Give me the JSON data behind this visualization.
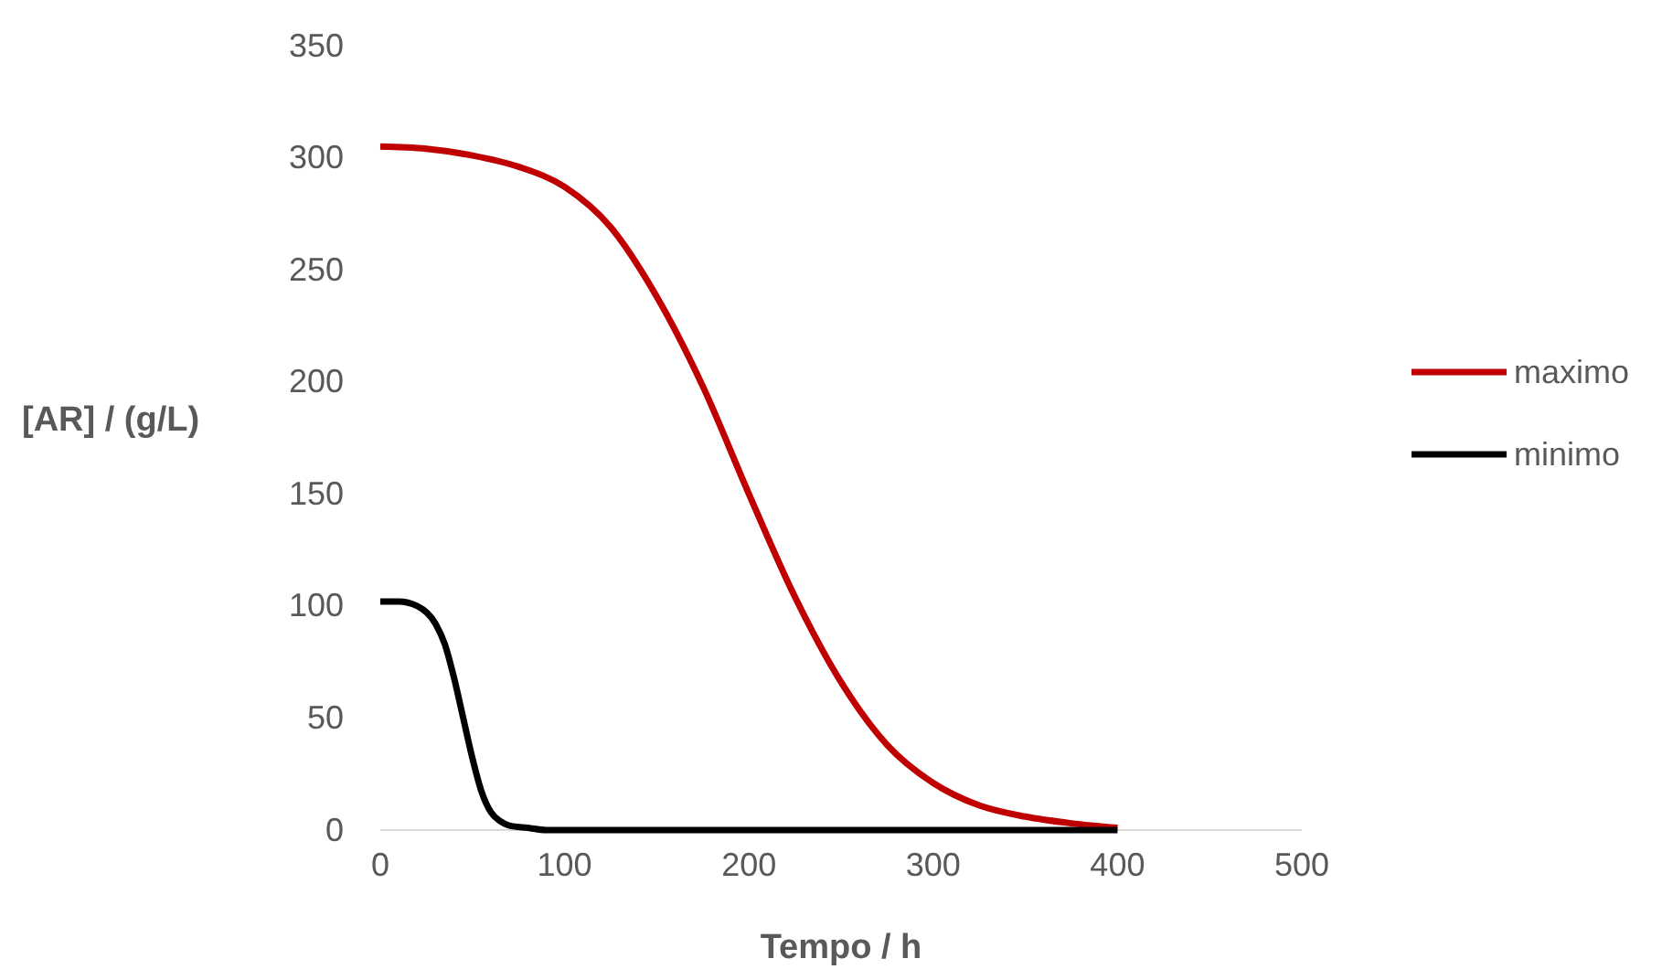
{
  "chart_data": {
    "type": "line",
    "xlabel": "Tempo / h",
    "ylabel": "[AR] / (g/L)",
    "xlim": [
      0,
      500
    ],
    "xticks": [
      0,
      100,
      200,
      300,
      400,
      500
    ],
    "ylim": [
      0,
      350
    ],
    "yticks": [
      0,
      50,
      100,
      150,
      200,
      250,
      300,
      350
    ],
    "grid": false,
    "legend": "right",
    "marker": "none",
    "line_style": "solid",
    "series": [
      {
        "name": "maximo",
        "color": "#c00000",
        "x": [
          0,
          25,
          50,
          75,
          100,
          125,
          150,
          175,
          200,
          225,
          250,
          275,
          300,
          325,
          350,
          375,
          400
        ],
        "values": [
          305,
          304,
          301,
          296,
          287,
          269,
          238,
          198,
          150,
          104,
          66,
          38,
          21,
          11,
          6,
          3,
          1
        ]
      },
      {
        "name": "minimo",
        "color": "#000000",
        "x": [
          0,
          10,
          20,
          30,
          35,
          40,
          45,
          50,
          55,
          60,
          65,
          70,
          80,
          90,
          200,
          300,
          400
        ],
        "values": [
          102,
          102,
          100,
          92,
          83,
          68,
          50,
          32,
          17,
          8,
          4,
          2,
          1,
          0,
          0,
          0,
          0
        ]
      }
    ]
  }
}
